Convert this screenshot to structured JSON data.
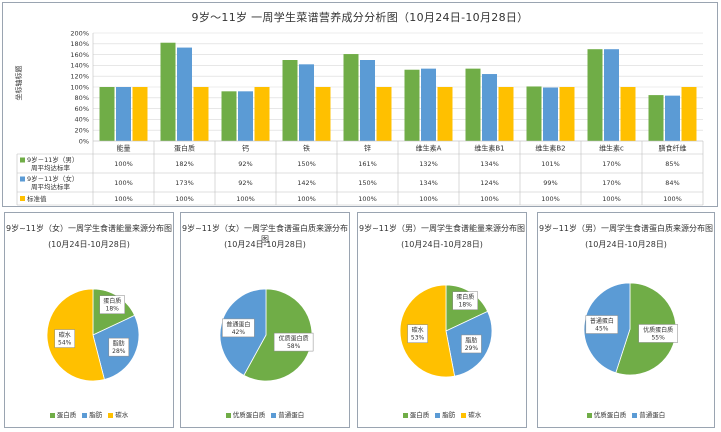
{
  "title": "9岁～11岁 一周学生菜谱营养成分分析图（10月24日-10月28日）",
  "y_axis_label": "坐标轴标题",
  "colors": {
    "boys": "#70ad47",
    "girls": "#5b9bd5",
    "standard": "#ffc000",
    "protein": "#70ad47",
    "fat": "#5b9bd5",
    "carb": "#ffc000",
    "quality_protein": "#70ad47",
    "normal_protein": "#5b9bd5"
  },
  "chart_data": [
    {
      "type": "bar",
      "title": "9岁～11岁 一周学生菜谱营养成分分析图（10月24日-10月28日）",
      "ylabel": "坐标轴标题",
      "ylim": [
        0,
        200
      ],
      "yticks": [
        "0%",
        "20%",
        "40%",
        "60%",
        "80%",
        "100%",
        "120%",
        "140%",
        "160%",
        "180%",
        "200%"
      ],
      "categories": [
        "能量",
        "蛋白质",
        "钙",
        "铁",
        "锌",
        "维生素A",
        "维生素B1",
        "维生素B2",
        "维生素c",
        "膳食纤维"
      ],
      "series": [
        {
          "name": "9岁－11岁（男）周平均达标率",
          "values": [
            100,
            182,
            92,
            150,
            161,
            132,
            134,
            101,
            170,
            85
          ],
          "labels": [
            "100%",
            "182%",
            "92%",
            "150%",
            "161%",
            "132%",
            "134%",
            "101%",
            "170%",
            "85%"
          ]
        },
        {
          "name": "9岁－11岁（女）周平均达标率",
          "values": [
            100,
            173,
            92,
            142,
            150,
            134,
            124,
            99,
            170,
            84
          ],
          "labels": [
            "100%",
            "173%",
            "92%",
            "142%",
            "150%",
            "134%",
            "124%",
            "99%",
            "170%",
            "84%"
          ]
        },
        {
          "name": "标准值",
          "values": [
            100,
            100,
            100,
            100,
            100,
            100,
            100,
            100,
            100,
            100
          ],
          "labels": [
            "100%",
            "100%",
            "100%",
            "100%",
            "100%",
            "100%",
            "100%",
            "100%",
            "100%",
            "100%"
          ]
        }
      ],
      "legend_placement": "data-table",
      "grid": true
    },
    {
      "type": "pie",
      "title": "9岁~11岁（女）一周学生食谱能量来源分布图",
      "subtitle": "(10月24日-10月28日)",
      "slices": [
        {
          "name": "蛋白质",
          "label": "蛋白质",
          "value": 18,
          "pct": "18%"
        },
        {
          "name": "脂肪",
          "label": "脂肪",
          "value": 28,
          "pct": "28%"
        },
        {
          "name": "碳水",
          "label": "碳水",
          "value": 54,
          "pct": "54%"
        }
      ],
      "legend": [
        "蛋白质",
        "脂肪",
        "碳水"
      ]
    },
    {
      "type": "pie",
      "title": "9岁~11岁（女）一周学生食谱蛋白质来源分布图",
      "subtitle": "(10月24日-10月28日)",
      "slices": [
        {
          "name": "优质蛋白质",
          "label": "优质蛋白质",
          "value": 58,
          "pct": "58%"
        },
        {
          "name": "普通蛋白",
          "label": "普通蛋白",
          "value": 42,
          "pct": "42%"
        }
      ],
      "legend": [
        "优质蛋白质",
        "普通蛋白"
      ]
    },
    {
      "type": "pie",
      "title": "9岁~11岁（男）一周学生食谱能量来源分布图",
      "subtitle": "(10月24日-10月28日)",
      "slices": [
        {
          "name": "蛋白质",
          "label": "蛋白质",
          "value": 18,
          "pct": "18%"
        },
        {
          "name": "脂肪",
          "label": "脂肪",
          "value": 29,
          "pct": "29%"
        },
        {
          "name": "碳水",
          "label": "碳水",
          "value": 53,
          "pct": "53%"
        }
      ],
      "legend": [
        "蛋白质",
        "脂肪",
        "碳水"
      ]
    },
    {
      "type": "pie",
      "title": "9岁~11岁（男）一周学生食谱蛋白质来源分布图",
      "subtitle": "(10月24日-10月28日)",
      "slices": [
        {
          "name": "优质蛋白质",
          "label": "优质蛋白质",
          "value": 55,
          "pct": "55%"
        },
        {
          "name": "普通蛋白",
          "label": "普通蛋白",
          "value": 45,
          "pct": "45%"
        }
      ],
      "legend": [
        "优质蛋白质",
        "普通蛋白"
      ]
    }
  ]
}
